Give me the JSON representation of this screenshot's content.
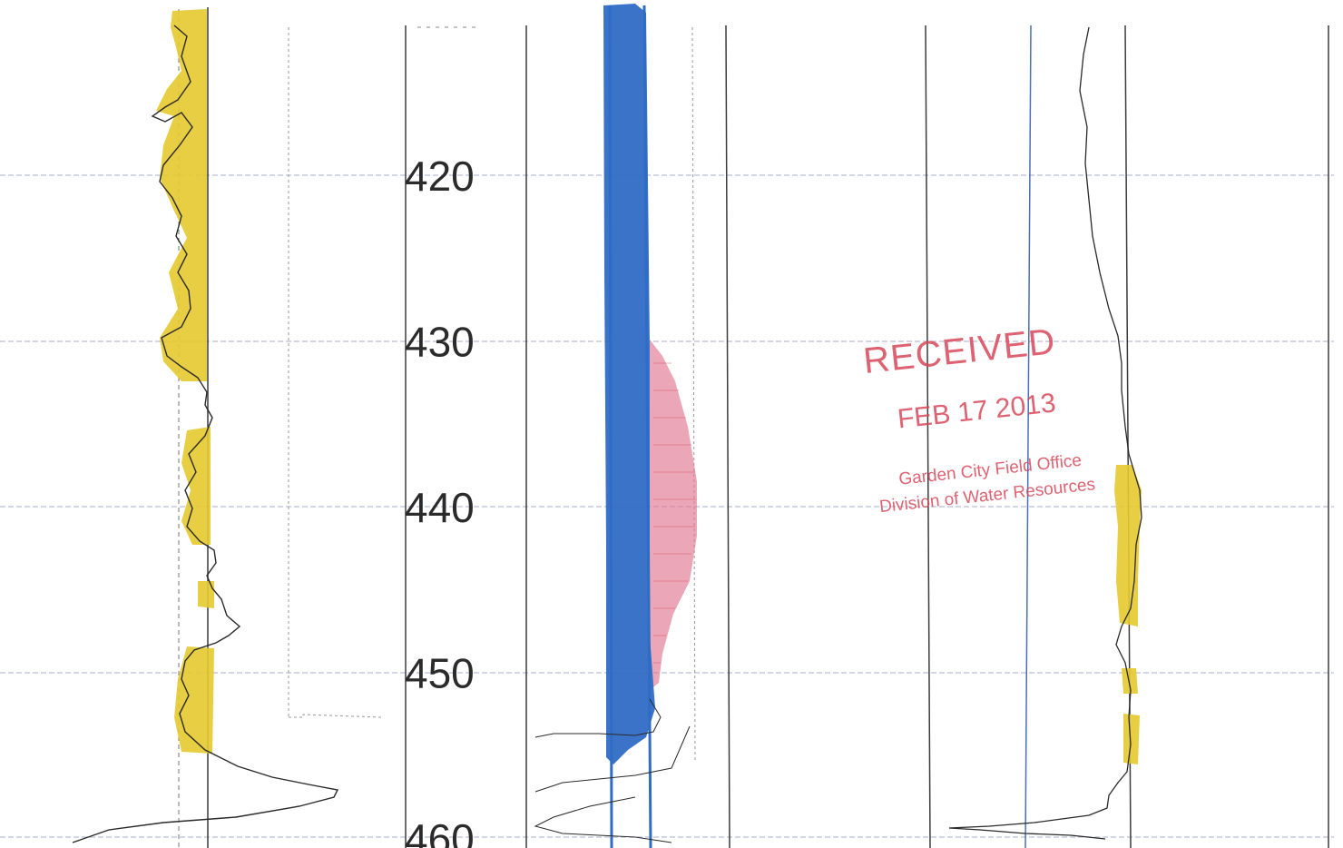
{
  "depth_track": {
    "labels": [
      {
        "depth": 420,
        "text": "420"
      },
      {
        "depth": 430,
        "text": "430"
      },
      {
        "depth": 440,
        "text": "440"
      },
      {
        "depth": 450,
        "text": "450"
      },
      {
        "depth": 460,
        "text": "460"
      }
    ]
  },
  "stamp": {
    "title": "RECEIVED",
    "date": "FEB 17 2013",
    "office_line1": "Garden City Field Office",
    "office_line2": "Division of Water Resources"
  },
  "colors": {
    "grid_dark": "#3c3c3c",
    "grid_light": "#b9bdd6",
    "grid_blue": "#4a6fb6",
    "highlight_yellow": "#e6c92e",
    "highlight_blue": "#2f6cc4",
    "highlight_red": "#e07890",
    "stamp_red": "#d9485a",
    "curve": "#2a2a2a"
  }
}
